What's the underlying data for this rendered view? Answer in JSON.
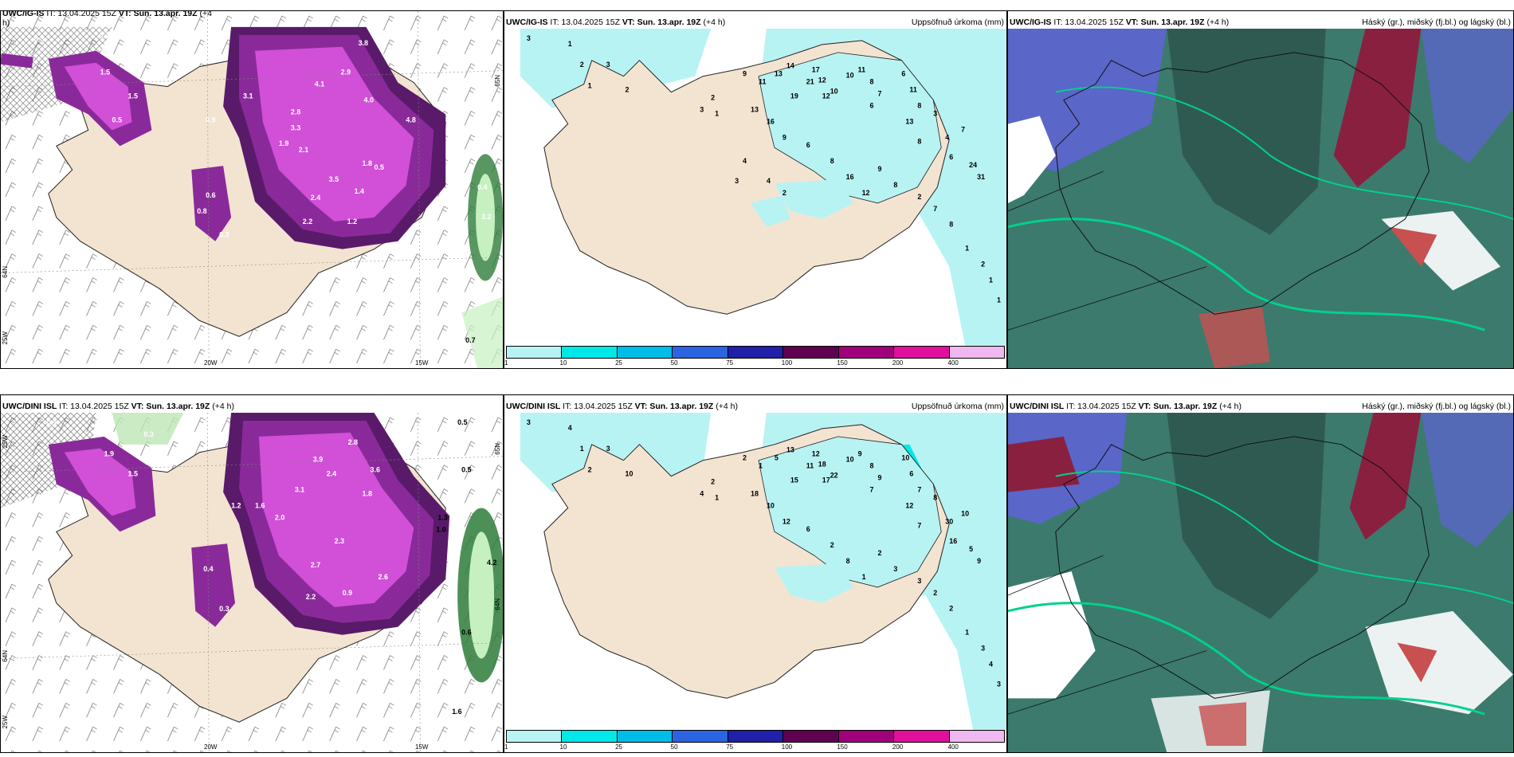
{
  "rows": [
    {
      "model": "UWC/IG-IS",
      "panels": [
        {
          "kind": "precip-rate",
          "model": "UWC/IG-IS",
          "it": "IT: 13.04.2025 15Z",
          "vt_label": "VT:",
          "vt": "Sun. 13.apr. 19Z",
          "lead": "(+4",
          "lead2": "h)"
        },
        {
          "kind": "accum",
          "model": "UWC/IG-IS",
          "it": "IT: 13.04.2025 15Z",
          "vt_label": "VT:",
          "vt": "Sun. 13.apr. 19Z",
          "lead": "(+4 h)",
          "title": "Uppsöfnuð úrkoma (mm)"
        },
        {
          "kind": "clouds",
          "model": "UWC/IG-IS",
          "it": "IT: 13.04.2025 15Z",
          "vt_label": "VT:",
          "vt": "Sun. 13.apr. 19Z",
          "lead": "(+4 h)",
          "title": "Háský (gr.), miðský (fj.bl.) og lágský (bl.)"
        }
      ]
    },
    {
      "model": "UWC/DINI ISL",
      "panels": [
        {
          "kind": "precip-rate",
          "model": "UWC/DINI ISL",
          "it": "IT: 13.04.2025 15Z",
          "vt_label": "VT:",
          "vt": "Sun. 13.apr. 19Z",
          "lead": "(+4 h)"
        },
        {
          "kind": "accum",
          "model": "UWC/DINI ISL",
          "it": "IT: 13.04.2025 15Z",
          "vt_label": "VT:",
          "vt": "Sun. 13.apr. 19Z",
          "lead": "(+4 h)",
          "title": "Uppsöfnuð úrkoma (mm)"
        },
        {
          "kind": "clouds",
          "model": "UWC/DINI ISL",
          "it": "IT: 13.04.2025 15Z",
          "vt_label": "VT:",
          "vt": "Sun. 13.apr. 19Z",
          "lead": "(+4 h)",
          "title": "Háský (gr.), miðský (fj.bl.) og lágský (bl.)"
        }
      ]
    }
  ],
  "axes": {
    "lon_20w": "20W",
    "lon_15w": "15W",
    "lon_25w": "25W",
    "lat_65n": "65N",
    "lat_64n": "64N"
  },
  "legend": {
    "ticks": [
      "1",
      "10",
      "25",
      "50",
      "75",
      "100",
      "150",
      "200",
      "400"
    ],
    "colors": [
      "#b8f3f3",
      "#00e8e8",
      "#00bde8",
      "#2a64e0",
      "#2020a8",
      "#600050",
      "#a0007a",
      "#e0109a",
      "#f0b8f0"
    ]
  },
  "colors": {
    "land": "#f3e4d1",
    "accum_light": "#b8f3f3",
    "accum_mid": "#7fe6ec",
    "purple_dark": "#5a1a6a",
    "purple": "#8a2a9a",
    "magenta": "#d24fd8",
    "light_magenta": "#e69ee9",
    "cloud_dark": "#2f5a52",
    "cloud_teal": "#3c7a6e",
    "cloud_blue": "#5a66c8",
    "cloud_maroon": "#8a2040",
    "cloud_green": "#00d18b"
  },
  "precip_labels_top": [
    "0.3",
    "0.2",
    "0.3",
    "1.5",
    "0.5",
    "1.5",
    "0.9",
    "3.8",
    "2.9",
    "4.1",
    "3.1",
    "1.9",
    "4.0",
    "4.8",
    "2.8",
    "3.3",
    "2.1",
    "2.2",
    "0.5",
    "1.8",
    "3.5",
    "1.4",
    "2.4",
    "1.2",
    "0.6",
    "0.3",
    "0.8",
    "0.7",
    "3.2",
    "0.4"
  ],
  "precip_labels_bottom": [
    "0.3",
    "0.3",
    "0.5",
    "1.9",
    "1.5",
    "2.8",
    "3.9",
    "2.4",
    "3.6",
    "3.1",
    "2.0",
    "1.6",
    "2.3",
    "2.7",
    "2.2",
    "0.9",
    "0.4",
    "0.3",
    "1.0",
    "1.3",
    "1.2",
    "0.5",
    "0.6",
    "1.6",
    "4.2",
    "1.8",
    "2.6"
  ],
  "accum_labels_top": [
    "3",
    "1",
    "2",
    "1",
    "3",
    "2",
    "2",
    "1",
    "3",
    "9",
    "11",
    "13",
    "14",
    "19",
    "21",
    "17",
    "12",
    "10",
    "12",
    "10",
    "11",
    "8",
    "6",
    "7",
    "6",
    "11",
    "8",
    "13",
    "8",
    "3",
    "4",
    "6",
    "7",
    "24",
    "31",
    "13",
    "16",
    "9",
    "6",
    "8",
    "16",
    "12",
    "9",
    "8",
    "2",
    "7",
    "8",
    "1",
    "2",
    "1",
    "1",
    "4",
    "3",
    "4",
    "2"
  ],
  "accum_labels_bottom": [
    "3",
    "4",
    "1",
    "2",
    "3",
    "10",
    "2",
    "1",
    "4",
    "2",
    "1",
    "5",
    "13",
    "15",
    "11",
    "12",
    "17",
    "22",
    "18",
    "10",
    "9",
    "8",
    "7",
    "9",
    "10",
    "6",
    "7",
    "12",
    "7",
    "8",
    "30",
    "16",
    "10",
    "5",
    "9",
    "18",
    "10",
    "12",
    "6",
    "2",
    "8",
    "1",
    "2",
    "3",
    "3",
    "2",
    "2",
    "1",
    "3",
    "4",
    "3"
  ]
}
